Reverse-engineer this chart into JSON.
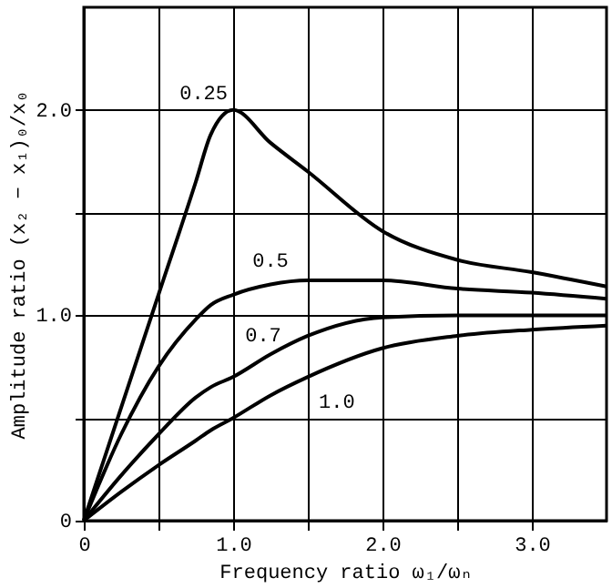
{
  "chart_data": {
    "type": "line",
    "xlabel": "Frequency ratio ω₁/ωₙ",
    "ylabel": "Amplitude ratio (x₂ − x₁)₀/x₀",
    "x": [
      0,
      0.25,
      0.5,
      0.75,
      0.85,
      1.0,
      1.25,
      1.5,
      2.0,
      2.5,
      3.0,
      3.5
    ],
    "series": [
      {
        "name": "0.25",
        "color": "#000000",
        "values": [
          0,
          0.55,
          1.1,
          1.65,
          1.88,
          2.0,
          1.84,
          1.7,
          1.41,
          1.27,
          1.21,
          1.14
        ]
      },
      {
        "name": "0.5",
        "color": "#000000",
        "values": [
          0,
          0.42,
          0.75,
          0.98,
          1.05,
          1.1,
          1.15,
          1.17,
          1.17,
          1.13,
          1.11,
          1.08
        ]
      },
      {
        "name": "0.7",
        "color": "#000000",
        "values": [
          0,
          0.22,
          0.42,
          0.6,
          0.65,
          0.7,
          0.81,
          0.9,
          0.99,
          1.0,
          1.0,
          1.0
        ]
      },
      {
        "name": "1.0",
        "color": "#000000",
        "values": [
          0,
          0.14,
          0.27,
          0.39,
          0.44,
          0.5,
          0.61,
          0.7,
          0.84,
          0.9,
          0.93,
          0.95
        ]
      }
    ],
    "xlim": [
      0,
      3.5
    ],
    "ylim": [
      0,
      2.5
    ],
    "xticks": [
      0,
      {
        "value": 0.5,
        "label": null
      },
      {
        "value": 1,
        "label": "1.0"
      },
      {
        "value": 1.5,
        "label": null
      },
      {
        "value": 2,
        "label": "2.0"
      },
      {
        "value": 2.5,
        "label": null
      },
      {
        "value": 3,
        "label": "3.0"
      }
    ],
    "yticks": [
      0,
      {
        "value": 0.5,
        "label": null
      },
      {
        "value": 1,
        "label": "1.0"
      },
      {
        "value": 1.5,
        "label": null
      },
      {
        "value": 2,
        "label": "2.0"
      }
    ],
    "grid": true,
    "legend": false,
    "marker": "none",
    "line_style": "solid"
  }
}
